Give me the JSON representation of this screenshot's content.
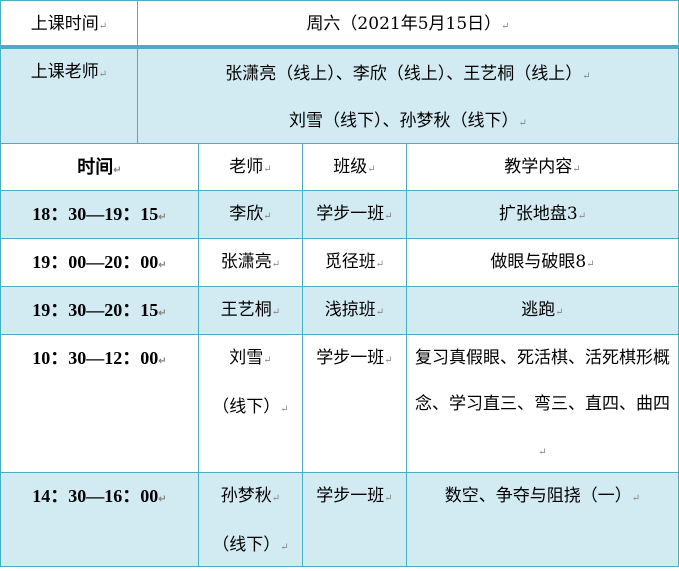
{
  "header": {
    "time_label": "上课时间",
    "time_value": "周六（2021年5月15日）",
    "teacher_label": "上课老师",
    "teachers_line1": "张潇亮（线上）、李欣（线上）、王艺桐（线上）",
    "teachers_line2": "刘雪（线下）、孙梦秋（线下）"
  },
  "columns": [
    "时间",
    "老师",
    "班级",
    "教学内容"
  ],
  "rows": [
    {
      "time": "18：30—19：15",
      "teacher": "李欣",
      "class": "学步一班",
      "content": "扩张地盘3"
    },
    {
      "time": "19：00—20：00",
      "teacher": "张潇亮",
      "class": "觅径班",
      "content": "做眼与破眼8"
    },
    {
      "time": "19：30—20：15",
      "teacher": "王艺桐",
      "class": "浅掠班",
      "content": "逃跑"
    },
    {
      "time": "10：30—12：00",
      "teacher": "刘雪",
      "teacher2": "（线下）",
      "class": "学步一班",
      "content": "复习真假眼、死活棋、活死棋形概念、学习直三、弯三、直四、曲四"
    },
    {
      "time": "14：30—16：00",
      "teacher": "孙梦秋",
      "teacher2": "（线下）",
      "class": "学步一班",
      "content": "数空、争夺与阻挠（一）"
    }
  ],
  "colors": {
    "border": "#4bacc6",
    "shade": "#d2eaf1"
  }
}
